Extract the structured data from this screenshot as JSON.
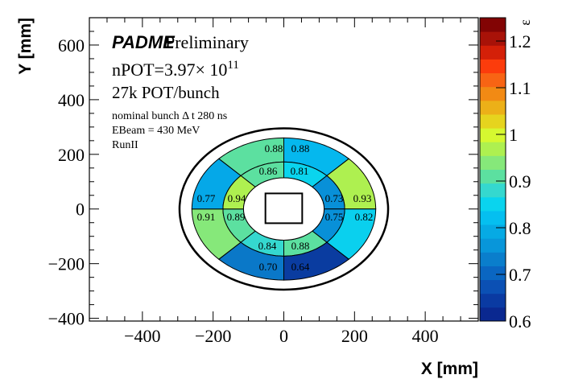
{
  "chart_data": {
    "type": "heatmap",
    "subtype": "polar-sector-map",
    "xlabel": "X [mm]",
    "ylabel": "Y [mm]",
    "zlabel": "ε",
    "xlim": [
      -550,
      550
    ],
    "ylim": [
      -410,
      700
    ],
    "zlim": [
      0.6,
      1.25
    ],
    "x_ticks": [
      -400,
      -200,
      0,
      200,
      400
    ],
    "y_ticks": [
      -400,
      -200,
      0,
      200,
      400,
      600
    ],
    "z_ticks": [
      0.6,
      0.7,
      0.8,
      0.9,
      1,
      1.1,
      1.2
    ],
    "x_tick_labels": [
      "−400",
      "−200",
      "0",
      "200",
      "400"
    ],
    "y_tick_labels": [
      "−400",
      "−200",
      "0",
      "200",
      "400",
      "600"
    ],
    "z_tick_labels": [
      "0.6",
      "0.7",
      "0.8",
      "0.9",
      "1",
      "1.1",
      "1.2"
    ],
    "palette": [
      "#0a2890",
      "#0a3aa2",
      "#0b50b4",
      "#0a66c2",
      "#0a7ecc",
      "#0896da",
      "#06aae4",
      "#05bff0",
      "#0ad4ee",
      "#35d8cf",
      "#5ce0a0",
      "#86e87a",
      "#aef050",
      "#d6f830",
      "#e6d41e",
      "#ecb018",
      "#f28a14",
      "#f86414",
      "#fc3c0c",
      "#d42008",
      "#a81208",
      "#820404"
    ],
    "geometry_mm": {
      "hole_radius": 114,
      "middle_radius": 172,
      "outer_radius": 260,
      "boundary_circle_radius": 295,
      "center_square_half": 52
    },
    "cells": [
      {
        "ring": "outer",
        "angles": [
          90,
          135
        ],
        "value": "0.88",
        "color": "#5ce0a0"
      },
      {
        "ring": "outer",
        "angles": [
          45,
          90
        ],
        "value": "0.88",
        "color": "#05b8ee"
      },
      {
        "ring": "outer",
        "angles": [
          0,
          45
        ],
        "value": "0.93",
        "color": "#aef050"
      },
      {
        "ring": "outer",
        "angles": [
          -45,
          0
        ],
        "value": "0.82",
        "color": "#0ad0ee"
      },
      {
        "ring": "outer",
        "angles": [
          -90,
          -45
        ],
        "value": "0.64",
        "color": "#0a3ca0"
      },
      {
        "ring": "outer",
        "angles": [
          -135,
          -90
        ],
        "value": "0.70",
        "color": "#0a78c8"
      },
      {
        "ring": "outer",
        "angles": [
          180,
          225
        ],
        "value": "0.91",
        "color": "#86e87a"
      },
      {
        "ring": "outer",
        "angles": [
          135,
          180
        ],
        "value": "0.77",
        "color": "#05a8e8"
      },
      {
        "ring": "inner",
        "angles": [
          90,
          135
        ],
        "value": "0.86",
        "color": "#5ce0a0"
      },
      {
        "ring": "inner",
        "angles": [
          45,
          90
        ],
        "value": "0.81",
        "color": "#0ad4ee"
      },
      {
        "ring": "inner",
        "angles": [
          0,
          45
        ],
        "value": "0.73",
        "color": "#0890d8"
      },
      {
        "ring": "inner",
        "angles": [
          -45,
          0
        ],
        "value": "0.75",
        "color": "#0890d8"
      },
      {
        "ring": "inner",
        "angles": [
          -90,
          -45
        ],
        "value": "0.88",
        "color": "#5ce0a0"
      },
      {
        "ring": "inner",
        "angles": [
          -135,
          -90
        ],
        "value": "0.84",
        "color": "#35d8cf"
      },
      {
        "ring": "inner",
        "angles": [
          180,
          225
        ],
        "value": "0.89",
        "color": "#5ce0a0"
      },
      {
        "ring": "inner",
        "angles": [
          135,
          180
        ],
        "value": "0.94",
        "color": "#aef050"
      }
    ],
    "annotations": {
      "experiment": "PADME",
      "status": "Preliminary",
      "npot_prefix": "nPOT=3.97× 10",
      "npot_exponent": "11",
      "pot_per_bunch": "27k POT/bunch",
      "bunch_length": "nominal bunch Δ t 280 ns",
      "beam_energy": "EBeam = 430 MeV",
      "run": "RunII"
    }
  }
}
